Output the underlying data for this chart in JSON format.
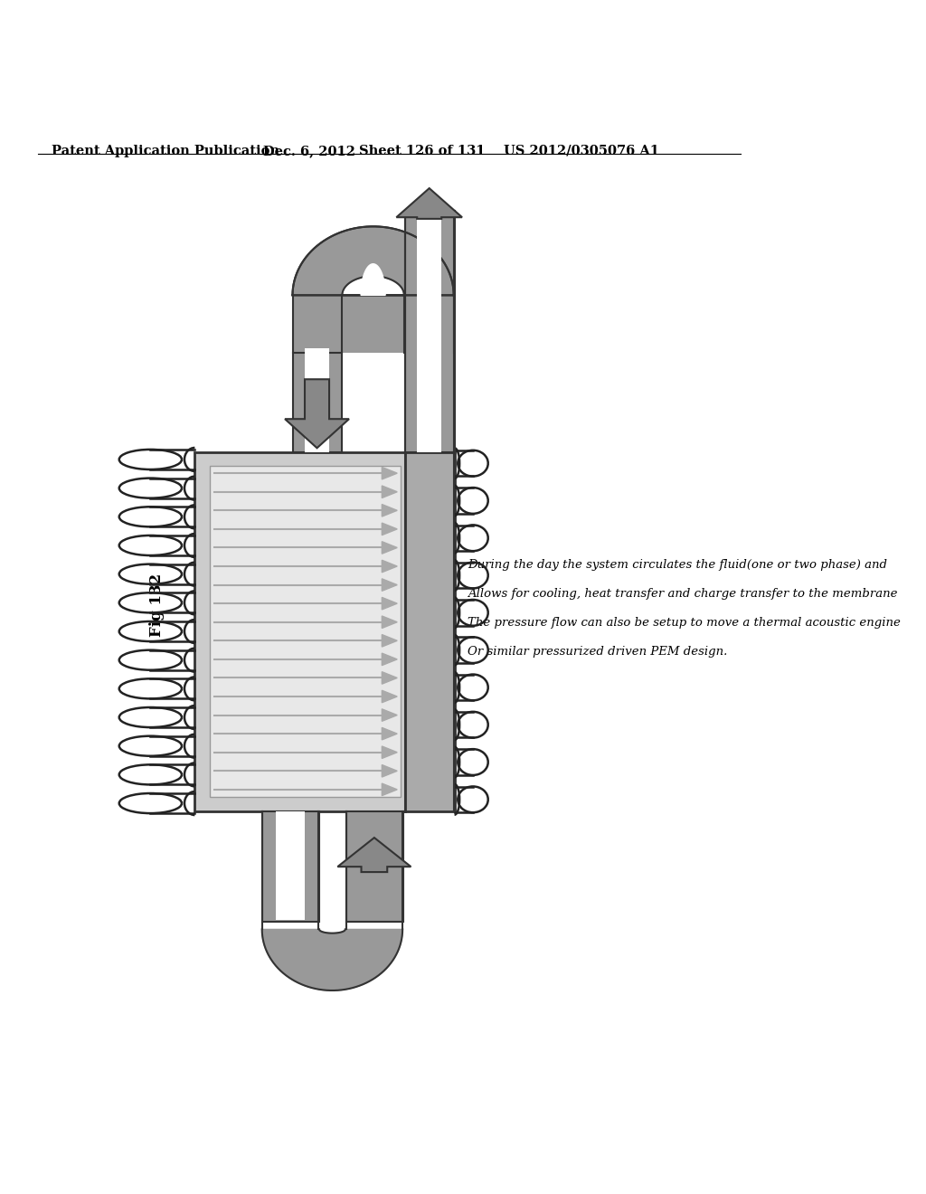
{
  "title_line1": "Patent Application Publication",
  "title_line2": "Dec. 6, 2012",
  "title_line3": "Sheet 126 of 131",
  "title_line4": "US 2012/0305076 A1",
  "fig_label": "Fig 132",
  "annotation_lines": [
    "During the day the system circulates the fluid(one or two phase) and",
    "Allows for cooling, heat transfer and charge transfer to the membrane",
    "The pressure flow can also be setup to move a thermal acoustic engine",
    "Or similar pressurized driven PEM design."
  ],
  "bg_color": "#ffffff",
  "dark_gray": "#555555",
  "mid_gray": "#888888",
  "light_gray": "#bbbbbb",
  "very_light_gray": "#e0e0e0",
  "coil_color": "#222222",
  "pipe_fill": "#999999",
  "pipe_edge": "#333333",
  "box_fill_outer": "#cccccc",
  "box_fill_inner": "#e8e8e8",
  "right_col_fill": "#aaaaaa",
  "fin_color": "#aaaaaa",
  "arrow_fill": "#888888",
  "arrow_edge": "#333333"
}
